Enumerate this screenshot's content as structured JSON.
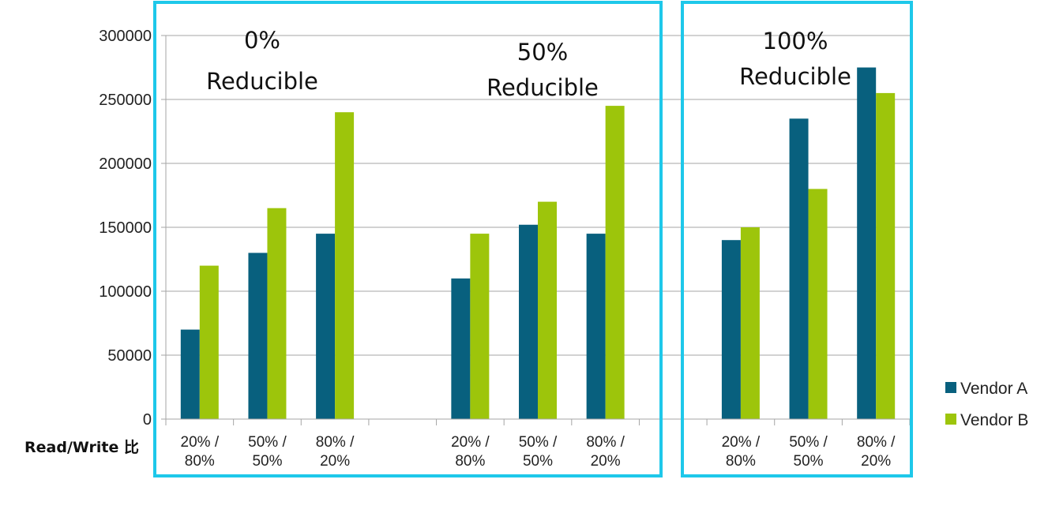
{
  "chart_data": {
    "type": "bar",
    "xlabel": "Read/Write 比",
    "ylim": [
      0,
      300000
    ],
    "yticks": [
      "300000",
      "250000",
      "200000",
      "150000",
      "100000",
      "50000",
      "0"
    ],
    "grid": true,
    "legend_position": "bottom-right",
    "groups": [
      {
        "label_lines": [
          "0%",
          "Reducible"
        ],
        "categories": [
          [
            "20% /",
            "80%"
          ],
          [
            "50% /",
            "50%"
          ],
          [
            "80% /",
            "20%"
          ]
        ],
        "series": [
          {
            "name": "Vendor A",
            "values": [
              70000,
              130000,
              145000
            ]
          },
          {
            "name": "Vendor B",
            "values": [
              120000,
              165000,
              240000
            ]
          }
        ]
      },
      {
        "label_lines": [
          "50%",
          "Reducible"
        ],
        "categories": [
          [
            "20% /",
            "80%"
          ],
          [
            "50% /",
            "50%"
          ],
          [
            "80% /",
            "20%"
          ]
        ],
        "series": [
          {
            "name": "Vendor A",
            "values": [
              110000,
              152000,
              145000
            ]
          },
          {
            "name": "Vendor B",
            "values": [
              145000,
              170000,
              245000
            ]
          }
        ]
      },
      {
        "label_lines": [
          "100%",
          "Reducible"
        ],
        "categories": [
          [
            "20% /",
            "80%"
          ],
          [
            "50% /",
            "50%"
          ],
          [
            "80% /",
            "20%"
          ]
        ],
        "series": [
          {
            "name": "Vendor A",
            "values": [
              140000,
              235000,
              275000
            ]
          },
          {
            "name": "Vendor B",
            "values": [
              150000,
              180000,
              255000
            ]
          }
        ]
      }
    ],
    "legend": [
      {
        "name": "Vendor A",
        "color": "#08607e"
      },
      {
        "name": "Vendor B",
        "color": "#9dc50b"
      }
    ],
    "colors": {
      "vendor_a": "#08607e",
      "vendor_b": "#9dc50b",
      "frame": "#1ec8ea",
      "grid": "#a6a6a6"
    }
  }
}
